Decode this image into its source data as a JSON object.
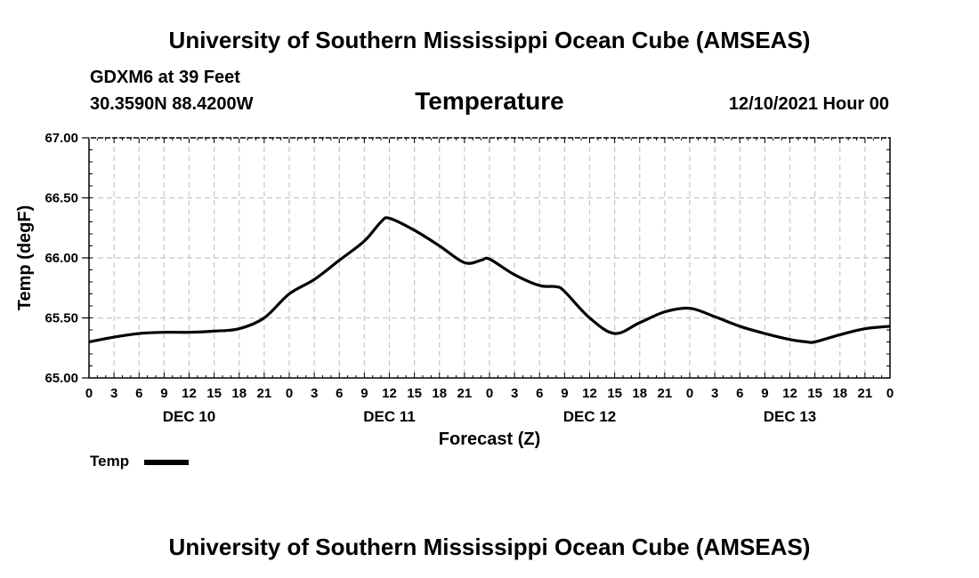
{
  "page_title_top": "University of Southern Mississippi Ocean Cube (AMSEAS)",
  "page_title_bottom": "University of Southern Mississippi Ocean Cube (AMSEAS)",
  "station": "GDXM6 at 39 Feet",
  "location": "30.3590N  88.4200W",
  "run_time": "12/10/2021 Hour 00",
  "chart_data": {
    "type": "line",
    "title": "Temperature",
    "xlabel": "Forecast (Z)",
    "ylabel": "Temp (degF)",
    "ylim": [
      65.0,
      67.0
    ],
    "xlim": [
      0,
      96
    ],
    "y_ticks": [
      "65.00",
      "65.50",
      "66.00",
      "66.50",
      "67.00"
    ],
    "x_tick_labels": [
      "0",
      "3",
      "6",
      "9",
      "12",
      "15",
      "18",
      "21",
      "0",
      "3",
      "6",
      "9",
      "12",
      "15",
      "18",
      "21",
      "0",
      "3",
      "6",
      "9",
      "12",
      "15",
      "18",
      "21",
      "0",
      "3",
      "6",
      "9",
      "12",
      "15",
      "18",
      "21",
      "0"
    ],
    "day_labels": [
      {
        "label": "DEC 10",
        "hour": 12
      },
      {
        "label": "DEC 11",
        "hour": 36
      },
      {
        "label": "DEC 12",
        "hour": 60
      },
      {
        "label": "DEC 13",
        "hour": 84
      }
    ],
    "grid": true,
    "legend_position": "bottom-left",
    "series": [
      {
        "name": "Temp",
        "color": "#000000",
        "x": [
          0,
          3,
          6,
          9,
          12,
          15,
          18,
          21,
          24,
          27,
          30,
          33,
          35,
          36,
          39,
          42,
          45,
          47,
          48,
          51,
          54,
          56,
          57,
          60,
          63,
          66,
          69,
          72,
          75,
          78,
          81,
          84,
          86,
          87,
          90,
          93,
          96
        ],
        "values": [
          65.3,
          65.34,
          65.37,
          65.38,
          65.38,
          65.39,
          65.41,
          65.5,
          65.7,
          65.82,
          65.98,
          66.14,
          66.3,
          66.33,
          66.23,
          66.1,
          65.96,
          65.98,
          65.99,
          65.86,
          65.77,
          65.76,
          65.72,
          65.5,
          65.37,
          65.46,
          65.55,
          65.58,
          65.51,
          65.43,
          65.37,
          65.32,
          65.3,
          65.3,
          65.36,
          65.41,
          65.43
        ]
      }
    ]
  }
}
